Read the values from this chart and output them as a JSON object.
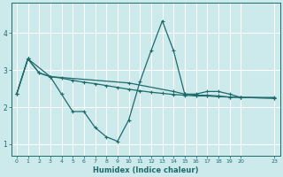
{
  "xlabel": "Humidex (Indice chaleur)",
  "background_color": "#cce9ec",
  "grid_color": "#ffffff",
  "line_color": "#1e6b6b",
  "xlim": [
    -0.5,
    23.5
  ],
  "ylim": [
    0.7,
    4.8
  ],
  "xticks": [
    0,
    1,
    2,
    3,
    4,
    5,
    6,
    7,
    8,
    9,
    10,
    11,
    12,
    13,
    14,
    15,
    16,
    17,
    18,
    19,
    20,
    23
  ],
  "yticks": [
    1,
    2,
    3,
    4
  ],
  "line1_x": [
    0,
    1,
    2,
    3,
    4,
    5,
    6,
    7,
    8,
    9,
    10,
    11,
    12,
    13,
    14,
    15,
    16,
    17,
    18,
    19,
    20,
    23
  ],
  "line1_y": [
    2.35,
    3.3,
    2.92,
    2.82,
    2.78,
    2.72,
    2.67,
    2.63,
    2.58,
    2.53,
    2.48,
    2.44,
    2.4,
    2.37,
    2.34,
    2.32,
    2.3,
    2.3,
    2.28,
    2.27,
    2.26,
    2.24
  ],
  "line2_x": [
    0,
    1,
    2,
    3,
    4,
    5,
    6,
    7,
    8,
    9,
    10,
    11,
    12,
    13,
    14,
    15,
    16,
    17,
    18,
    19,
    20,
    23
  ],
  "line2_y": [
    2.35,
    3.3,
    2.92,
    2.82,
    2.35,
    1.88,
    1.88,
    1.45,
    1.2,
    1.08,
    1.65,
    2.68,
    3.52,
    4.32,
    3.52,
    2.35,
    2.35,
    2.42,
    2.42,
    2.35,
    2.26,
    2.26
  ],
  "line3_x": [
    0,
    1,
    3,
    10,
    14,
    15,
    16,
    17,
    18,
    19,
    20,
    23
  ],
  "line3_y": [
    2.35,
    3.3,
    2.82,
    2.65,
    2.42,
    2.35,
    2.32,
    2.32,
    2.3,
    2.27,
    2.26,
    2.24
  ]
}
